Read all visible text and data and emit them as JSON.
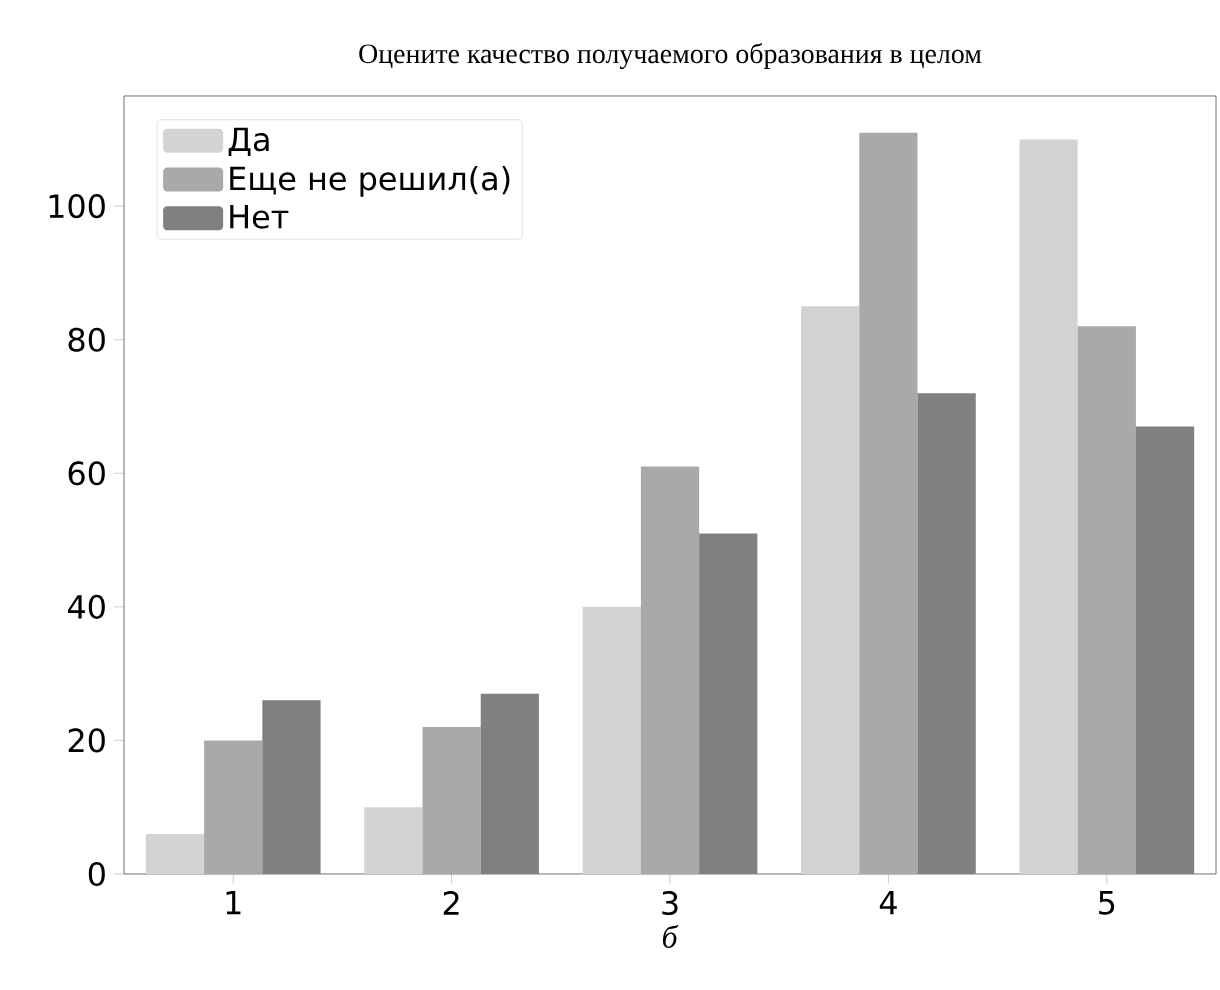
{
  "chart_data": {
    "type": "bar",
    "title": "Оцените качество получаемого образования в целом",
    "xlabel": "*б*",
    "categories": [
      "1",
      "2",
      "3",
      "4",
      "5"
    ],
    "series": [
      {
        "name": "Да",
        "color": "#d3d3d3",
        "values": [
          6,
          10,
          40,
          85,
          110
        ]
      },
      {
        "name": "Еще не решил(а)",
        "color": "#a9a9a9",
        "values": [
          20,
          22,
          61,
          111,
          82
        ]
      },
      {
        "name": "Нет",
        "color": "#808080",
        "values": [
          26,
          27,
          51,
          72,
          67
        ]
      }
    ],
    "ylim": [
      0,
      116.5
    ],
    "yticks": [
      0,
      20,
      40,
      60,
      80,
      100
    ],
    "legend": "top left",
    "grid": false
  }
}
